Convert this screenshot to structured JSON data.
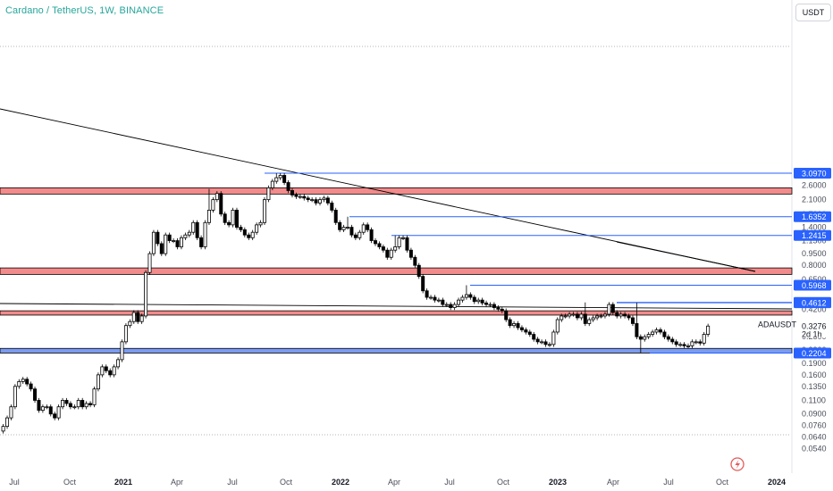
{
  "header": {
    "title": "Cardano / TetherUS, 1W, BINANCE",
    "currency_button": "USDT"
  },
  "colors": {
    "up_candle": "#ffffff",
    "down_candle": "#000000",
    "resistance_zone": "#f28b8b",
    "support_zone": "#7b9cf0",
    "level_line": "#2962ff",
    "trendline": "#000000",
    "title": "#26a69a"
  },
  "chart_data": {
    "type": "candlestick",
    "symbol": "ADAUSDT",
    "timeframe": "1W",
    "y_scale": "log",
    "ylim": [
      0.05,
      3.5
    ],
    "y_ticks": [
      "2.6000",
      "2.1000",
      "1.7000",
      "1.4000",
      "1.1500",
      "0.9500",
      "0.8000",
      "0.6500",
      "0.4200",
      "0.3400",
      "0.2800",
      "0.2300",
      "0.1900",
      "0.1600",
      "0.1350",
      "0.1100",
      "0.0900",
      "0.0760",
      "0.0640",
      "0.0540"
    ],
    "x_ticks": [
      {
        "label": "Jul",
        "bold": false
      },
      {
        "label": "Oct",
        "bold": false
      },
      {
        "label": "2021",
        "bold": true
      },
      {
        "label": "Apr",
        "bold": false
      },
      {
        "label": "Jul",
        "bold": false
      },
      {
        "label": "Oct",
        "bold": false
      },
      {
        "label": "2022",
        "bold": true
      },
      {
        "label": "Apr",
        "bold": false
      },
      {
        "label": "Jul",
        "bold": false
      },
      {
        "label": "Oct",
        "bold": false
      },
      {
        "label": "2023",
        "bold": true
      },
      {
        "label": "Apr",
        "bold": false
      },
      {
        "label": "Jul",
        "bold": false
      },
      {
        "label": "Oct",
        "bold": false
      },
      {
        "label": "2024",
        "bold": true
      }
    ],
    "price_levels": [
      {
        "label": "3.0970",
        "value": 3.097
      },
      {
        "label": "1.6352",
        "value": 1.6352
      },
      {
        "label": "1.2415",
        "value": 1.2415
      },
      {
        "label": "0.5968",
        "value": 0.5968
      },
      {
        "label": "0.4639",
        "value": 0.4639
      },
      {
        "label": "0.4612",
        "value": 0.4612
      },
      {
        "label": "0.2204",
        "value": 0.2204
      }
    ],
    "zones": [
      {
        "type": "resistance",
        "low": 2.28,
        "high": 2.5
      },
      {
        "type": "resistance",
        "low": 0.7,
        "high": 0.77
      },
      {
        "type": "resistance",
        "low": 0.385,
        "high": 0.41
      },
      {
        "type": "support",
        "low": 0.2204,
        "high": 0.236
      }
    ],
    "current": {
      "ticker": "ADAUSDT",
      "price": "0.3276",
      "countdown": "2d 1h"
    },
    "closes": [
      0.075,
      0.085,
      0.1,
      0.135,
      0.145,
      0.15,
      0.14,
      0.13,
      0.11,
      0.095,
      0.1,
      0.1,
      0.09,
      0.085,
      0.1,
      0.11,
      0.105,
      0.1,
      0.1,
      0.11,
      0.1,
      0.105,
      0.103,
      0.13,
      0.16,
      0.18,
      0.17,
      0.16,
      0.18,
      0.2,
      0.26,
      0.33,
      0.35,
      0.4,
      0.35,
      0.38,
      0.72,
      0.95,
      1.3,
      1.1,
      0.95,
      1.25,
      1.15,
      1.15,
      1.05,
      1.2,
      1.25,
      1.3,
      1.5,
      1.2,
      1.05,
      1.5,
      1.8,
      2.1,
      2.3,
      1.7,
      1.5,
      1.45,
      1.8,
      1.4,
      1.35,
      1.25,
      1.2,
      1.3,
      1.45,
      1.5,
      2.1,
      2.5,
      2.75,
      2.9,
      3.0,
      2.7,
      2.4,
      2.25,
      2.2,
      2.2,
      2.15,
      2.1,
      2.1,
      2.0,
      2.1,
      2.15,
      2.0,
      1.8,
      1.5,
      1.35,
      1.4,
      1.4,
      1.25,
      1.2,
      1.3,
      1.45,
      1.35,
      1.15,
      1.1,
      1.05,
      1.0,
      0.9,
      1.0,
      1.05,
      1.2,
      1.2,
      1.0,
      0.9,
      0.8,
      0.68,
      0.55,
      0.5,
      0.5,
      0.48,
      0.48,
      0.45,
      0.45,
      0.43,
      0.45,
      0.48,
      0.5,
      0.52,
      0.5,
      0.47,
      0.48,
      0.46,
      0.45,
      0.45,
      0.43,
      0.42,
      0.41,
      0.36,
      0.33,
      0.34,
      0.32,
      0.31,
      0.3,
      0.29,
      0.27,
      0.26,
      0.26,
      0.25,
      0.25,
      0.3,
      0.36,
      0.38,
      0.38,
      0.39,
      0.39,
      0.37,
      0.39,
      0.34,
      0.36,
      0.37,
      0.38,
      0.38,
      0.39,
      0.45,
      0.4,
      0.38,
      0.39,
      0.38,
      0.37,
      0.34,
      0.28,
      0.27,
      0.28,
      0.29,
      0.3,
      0.31,
      0.3,
      0.28,
      0.27,
      0.26,
      0.25,
      0.25,
      0.245,
      0.245,
      0.26,
      0.26,
      0.255,
      0.29,
      0.3276
    ],
    "wick_max": [
      0,
      0,
      0,
      0,
      0,
      0,
      0,
      0,
      0,
      0,
      0,
      0,
      0,
      0,
      0,
      0,
      0,
      0,
      0,
      0,
      0,
      0,
      0,
      0,
      0,
      0,
      0,
      0,
      0,
      0,
      0,
      0,
      0,
      0,
      0,
      0,
      0,
      0,
      0,
      0,
      0,
      0,
      0,
      0,
      0,
      0,
      0,
      0,
      0,
      0,
      0,
      0,
      2.46,
      0,
      0,
      0,
      0,
      0,
      0,
      0,
      0,
      0,
      0,
      0,
      0,
      0,
      0,
      0,
      0,
      3.097,
      0,
      0,
      0,
      0,
      0,
      0,
      0,
      0,
      0,
      0,
      0,
      0,
      0,
      0,
      0,
      0,
      0,
      1.6352,
      0,
      0,
      0,
      0,
      0,
      0,
      0,
      0,
      0,
      0,
      0,
      1.2415,
      0,
      0,
      0,
      0,
      0,
      0,
      0,
      0,
      0,
      0,
      0,
      0,
      0,
      0,
      0,
      0,
      0,
      0.5968,
      0,
      0,
      0,
      0,
      0,
      0,
      0,
      0,
      0,
      0,
      0,
      0,
      0,
      0,
      0,
      0,
      0,
      0,
      0,
      0,
      0,
      0,
      0,
      0,
      0,
      0,
      0,
      0,
      0,
      0.4639,
      0,
      0,
      0,
      0,
      0,
      0,
      0,
      0,
      0,
      0,
      0,
      0,
      0.4612,
      0,
      0,
      0,
      0,
      0,
      0,
      0,
      0,
      0,
      0,
      0,
      0,
      0,
      0,
      0,
      0,
      0,
      0,
      0,
      0,
      0
    ],
    "wick_min": [
      0,
      0,
      0,
      0,
      0,
      0,
      0,
      0,
      0,
      0,
      0,
      0,
      0,
      0,
      0,
      0,
      0,
      0,
      0,
      0,
      0,
      0,
      0,
      0,
      0,
      0,
      0,
      0,
      0,
      0,
      0,
      0,
      0,
      0,
      0,
      0,
      0,
      0,
      0,
      0,
      0,
      0,
      0,
      0,
      0,
      0,
      0,
      0,
      0,
      0,
      0,
      0,
      0,
      0,
      0,
      0,
      0,
      0,
      0,
      0,
      0,
      0,
      0,
      0,
      0,
      0,
      0,
      0,
      0,
      0,
      0,
      0,
      0,
      0,
      0,
      0,
      0,
      0,
      0,
      0,
      0,
      0,
      0,
      0,
      0,
      0,
      0,
      0,
      0,
      0,
      0,
      0,
      0,
      0,
      0,
      0,
      0,
      0,
      0,
      0,
      0,
      0,
      0,
      0,
      0,
      0,
      0,
      0,
      0,
      0,
      0,
      0,
      0,
      0,
      0,
      0,
      0,
      0,
      0,
      0,
      0,
      0,
      0,
      0,
      0,
      0,
      0,
      0,
      0,
      0,
      0,
      0,
      0,
      0,
      0,
      0,
      0,
      0,
      0,
      0,
      0,
      0,
      0,
      0,
      0,
      0,
      0,
      0,
      0,
      0,
      0,
      0,
      0,
      0,
      0,
      0,
      0,
      0,
      0,
      0,
      0,
      0.2204,
      0,
      0,
      0,
      0,
      0,
      0,
      0,
      0,
      0,
      0,
      0,
      0,
      0,
      0,
      0,
      0,
      0,
      0,
      0,
      0
    ]
  }
}
